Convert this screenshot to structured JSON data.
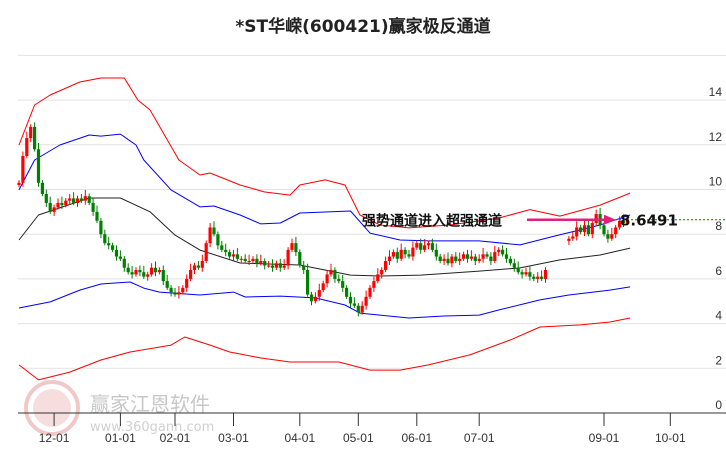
{
  "chart_data": {
    "type": "line",
    "title": "*ST华嵘(600421)赢家极反通道",
    "xlabel": "",
    "ylabel": "",
    "ylim": [
      0,
      16
    ],
    "yticks": [
      "0",
      "2",
      "4",
      "6",
      "8",
      "10",
      "12",
      "14"
    ],
    "grid": true,
    "xticks": [
      {
        "day": 9,
        "label": "12-01"
      },
      {
        "day": 26,
        "label": "01-01"
      },
      {
        "day": 40,
        "label": "02-01"
      },
      {
        "day": 55,
        "label": "03-01"
      },
      {
        "day": 72,
        "label": "04-01"
      },
      {
        "day": 87,
        "label": "05-01"
      },
      {
        "day": 102,
        "label": "06-01"
      },
      {
        "day": 118,
        "label": "07-01"
      },
      {
        "day": 150,
        "label": "09-01"
      },
      {
        "day": 167,
        "label": "10-01"
      }
    ],
    "candles_close": [
      10.3,
      11.5,
      12.3,
      12.8,
      11.8,
      10.3,
      9.8,
      9.4,
      9.0,
      9.2,
      9.4,
      9.3,
      9.5,
      9.6,
      9.4,
      9.6,
      9.5,
      9.7,
      9.4,
      9.0,
      8.6,
      8.0,
      7.6,
      7.5,
      7.3,
      7.0,
      6.9,
      6.5,
      6.3,
      6.2,
      6.4,
      6.3,
      6.1,
      6.2,
      6.5,
      6.3,
      6.4,
      5.9,
      5.6,
      5.4,
      5.3,
      5.4,
      5.6,
      6.0,
      6.4,
      6.6,
      6.5,
      6.8,
      7.6,
      8.3,
      8.0,
      7.5,
      7.3,
      7.2,
      7.0,
      7.1,
      6.9,
      6.9,
      6.8,
      6.8,
      6.9,
      6.7,
      6.8,
      6.6,
      6.6,
      6.5,
      6.7,
      6.5,
      6.6,
      7.3,
      7.6,
      7.2,
      6.6,
      6.4,
      5.3,
      5.0,
      5.2,
      5.5,
      5.8,
      6.2,
      6.4,
      6.0,
      5.9,
      5.6,
      5.2,
      4.9,
      4.8,
      4.5,
      4.8,
      5.2,
      5.6,
      5.9,
      6.2,
      6.4,
      6.8,
      7.0,
      7.2,
      6.9,
      7.3,
      7.1,
      7.0,
      7.4,
      7.6,
      7.3,
      7.5,
      7.6,
      7.3,
      7.0,
      6.8,
      6.9,
      6.7,
      7.0,
      6.8,
      6.9,
      7.1,
      6.9,
      7.0,
      6.8,
      6.9,
      7.1,
      7.0,
      6.8,
      7.2,
      7.3,
      7.1,
      6.9,
      6.7,
      6.5,
      6.3,
      6.2,
      6.3,
      6.1,
      6.0,
      6.1,
      6.0,
      6.4,
      null,
      null,
      null,
      null,
      null,
      7.8,
      7.9,
      8.3,
      8.1,
      8.4,
      8.0,
      8.5,
      8.9,
      8.4,
      8.0,
      7.8,
      8.0,
      8.3,
      8.6,
      8.5,
      8.65
    ],
    "series": [
      {
        "name": "upper-red",
        "color": "#ff0000",
        "points": [
          [
            0,
            11.99
          ],
          [
            4,
            13.78
          ],
          [
            8,
            14.23
          ],
          [
            15.6,
            14.81
          ],
          [
            21,
            14.99
          ],
          [
            27,
            14.99
          ],
          [
            30.5,
            14.0
          ],
          [
            33.6,
            13.56
          ],
          [
            41,
            11.32
          ],
          [
            46.4,
            10.65
          ],
          [
            49,
            10.74
          ],
          [
            56.7,
            10.2
          ],
          [
            63,
            9.89
          ],
          [
            69.5,
            9.75
          ],
          [
            72,
            10.2
          ],
          [
            78.5,
            10.43
          ],
          [
            83.6,
            10.2
          ],
          [
            87.4,
            8.86
          ],
          [
            92.6,
            8.41
          ],
          [
            100,
            8.28
          ],
          [
            110.5,
            8.41
          ],
          [
            123,
            8.72
          ],
          [
            131,
            9.1
          ],
          [
            138.7,
            8.81
          ],
          [
            149,
            9.3
          ],
          [
            156.7,
            9.84
          ]
        ]
      },
      {
        "name": "upper-blue",
        "color": "#0000ff",
        "points": [
          [
            0,
            9.98
          ],
          [
            4,
            11.32
          ],
          [
            10.5,
            11.99
          ],
          [
            18,
            12.44
          ],
          [
            21,
            12.39
          ],
          [
            26,
            12.48
          ],
          [
            30,
            11.99
          ],
          [
            32,
            11.32
          ],
          [
            39,
            9.98
          ],
          [
            46.4,
            9.22
          ],
          [
            50,
            9.26
          ],
          [
            56.7,
            8.86
          ],
          [
            62,
            8.46
          ],
          [
            67,
            8.5
          ],
          [
            72,
            8.95
          ],
          [
            85,
            9.04
          ],
          [
            90,
            8.05
          ],
          [
            97.7,
            7.74
          ],
          [
            105,
            7.7
          ],
          [
            118,
            7.7
          ],
          [
            128.5,
            7.52
          ],
          [
            137.4,
            7.92
          ],
          [
            149,
            8.41
          ],
          [
            156.7,
            8.86
          ]
        ]
      },
      {
        "name": "middle-black",
        "color": "#222222",
        "points": [
          [
            0,
            7.74
          ],
          [
            5,
            8.86
          ],
          [
            18,
            9.62
          ],
          [
            26,
            9.62
          ],
          [
            33.6,
            9.0
          ],
          [
            40,
            7.96
          ],
          [
            46.4,
            7.29
          ],
          [
            56.7,
            6.71
          ],
          [
            72,
            6.62
          ],
          [
            85,
            6.17
          ],
          [
            92.6,
            6.13
          ],
          [
            103,
            6.17
          ],
          [
            118,
            6.35
          ],
          [
            128.5,
            6.49
          ],
          [
            138.7,
            6.85
          ],
          [
            149,
            7.07
          ],
          [
            156.7,
            7.38
          ]
        ]
      },
      {
        "name": "lower-blue",
        "color": "#0000ff",
        "points": [
          [
            0,
            4.7
          ],
          [
            8,
            4.97
          ],
          [
            15.6,
            5.5
          ],
          [
            21,
            5.77
          ],
          [
            28.5,
            5.86
          ],
          [
            32,
            5.59
          ],
          [
            36,
            5.41
          ],
          [
            46.4,
            5.28
          ],
          [
            55,
            5.41
          ],
          [
            58,
            5.19
          ],
          [
            67,
            5.23
          ],
          [
            76,
            5.15
          ],
          [
            83.6,
            4.83
          ],
          [
            87.4,
            4.47
          ],
          [
            92.6,
            4.38
          ],
          [
            100,
            4.25
          ],
          [
            109,
            4.34
          ],
          [
            118,
            4.38
          ],
          [
            123,
            4.61
          ],
          [
            133.6,
            5.06
          ],
          [
            141,
            5.28
          ],
          [
            151.5,
            5.5
          ],
          [
            156.7,
            5.64
          ]
        ]
      },
      {
        "name": "lower-red",
        "color": "#ff0000",
        "points": [
          [
            0,
            2.15
          ],
          [
            5,
            1.48
          ],
          [
            13,
            1.83
          ],
          [
            21,
            2.37
          ],
          [
            28.5,
            2.73
          ],
          [
            39,
            3.04
          ],
          [
            42.5,
            3.4
          ],
          [
            49,
            3.04
          ],
          [
            54,
            2.73
          ],
          [
            62,
            2.46
          ],
          [
            69.5,
            2.28
          ],
          [
            82,
            2.28
          ],
          [
            90,
            1.92
          ],
          [
            97.7,
            1.92
          ],
          [
            105,
            2.15
          ],
          [
            115.6,
            2.6
          ],
          [
            126,
            3.27
          ],
          [
            133.6,
            3.85
          ],
          [
            144,
            3.94
          ],
          [
            151.5,
            4.07
          ],
          [
            156.7,
            4.25
          ]
        ]
      }
    ],
    "annotations": [
      {
        "text": "强势通道进入超强通道",
        "value_label": "8.6491",
        "value": 8.6491
      }
    ],
    "colors": {
      "up": "#ff0000",
      "down": "#008000",
      "arrow": "#e0207a",
      "level_line": "#008000"
    }
  },
  "watermark": {
    "name": "赢家江恩软件",
    "url": "www.360gann.com",
    "logo_text": [
      "江",
      "赢",
      "恩",
      "家"
    ]
  }
}
